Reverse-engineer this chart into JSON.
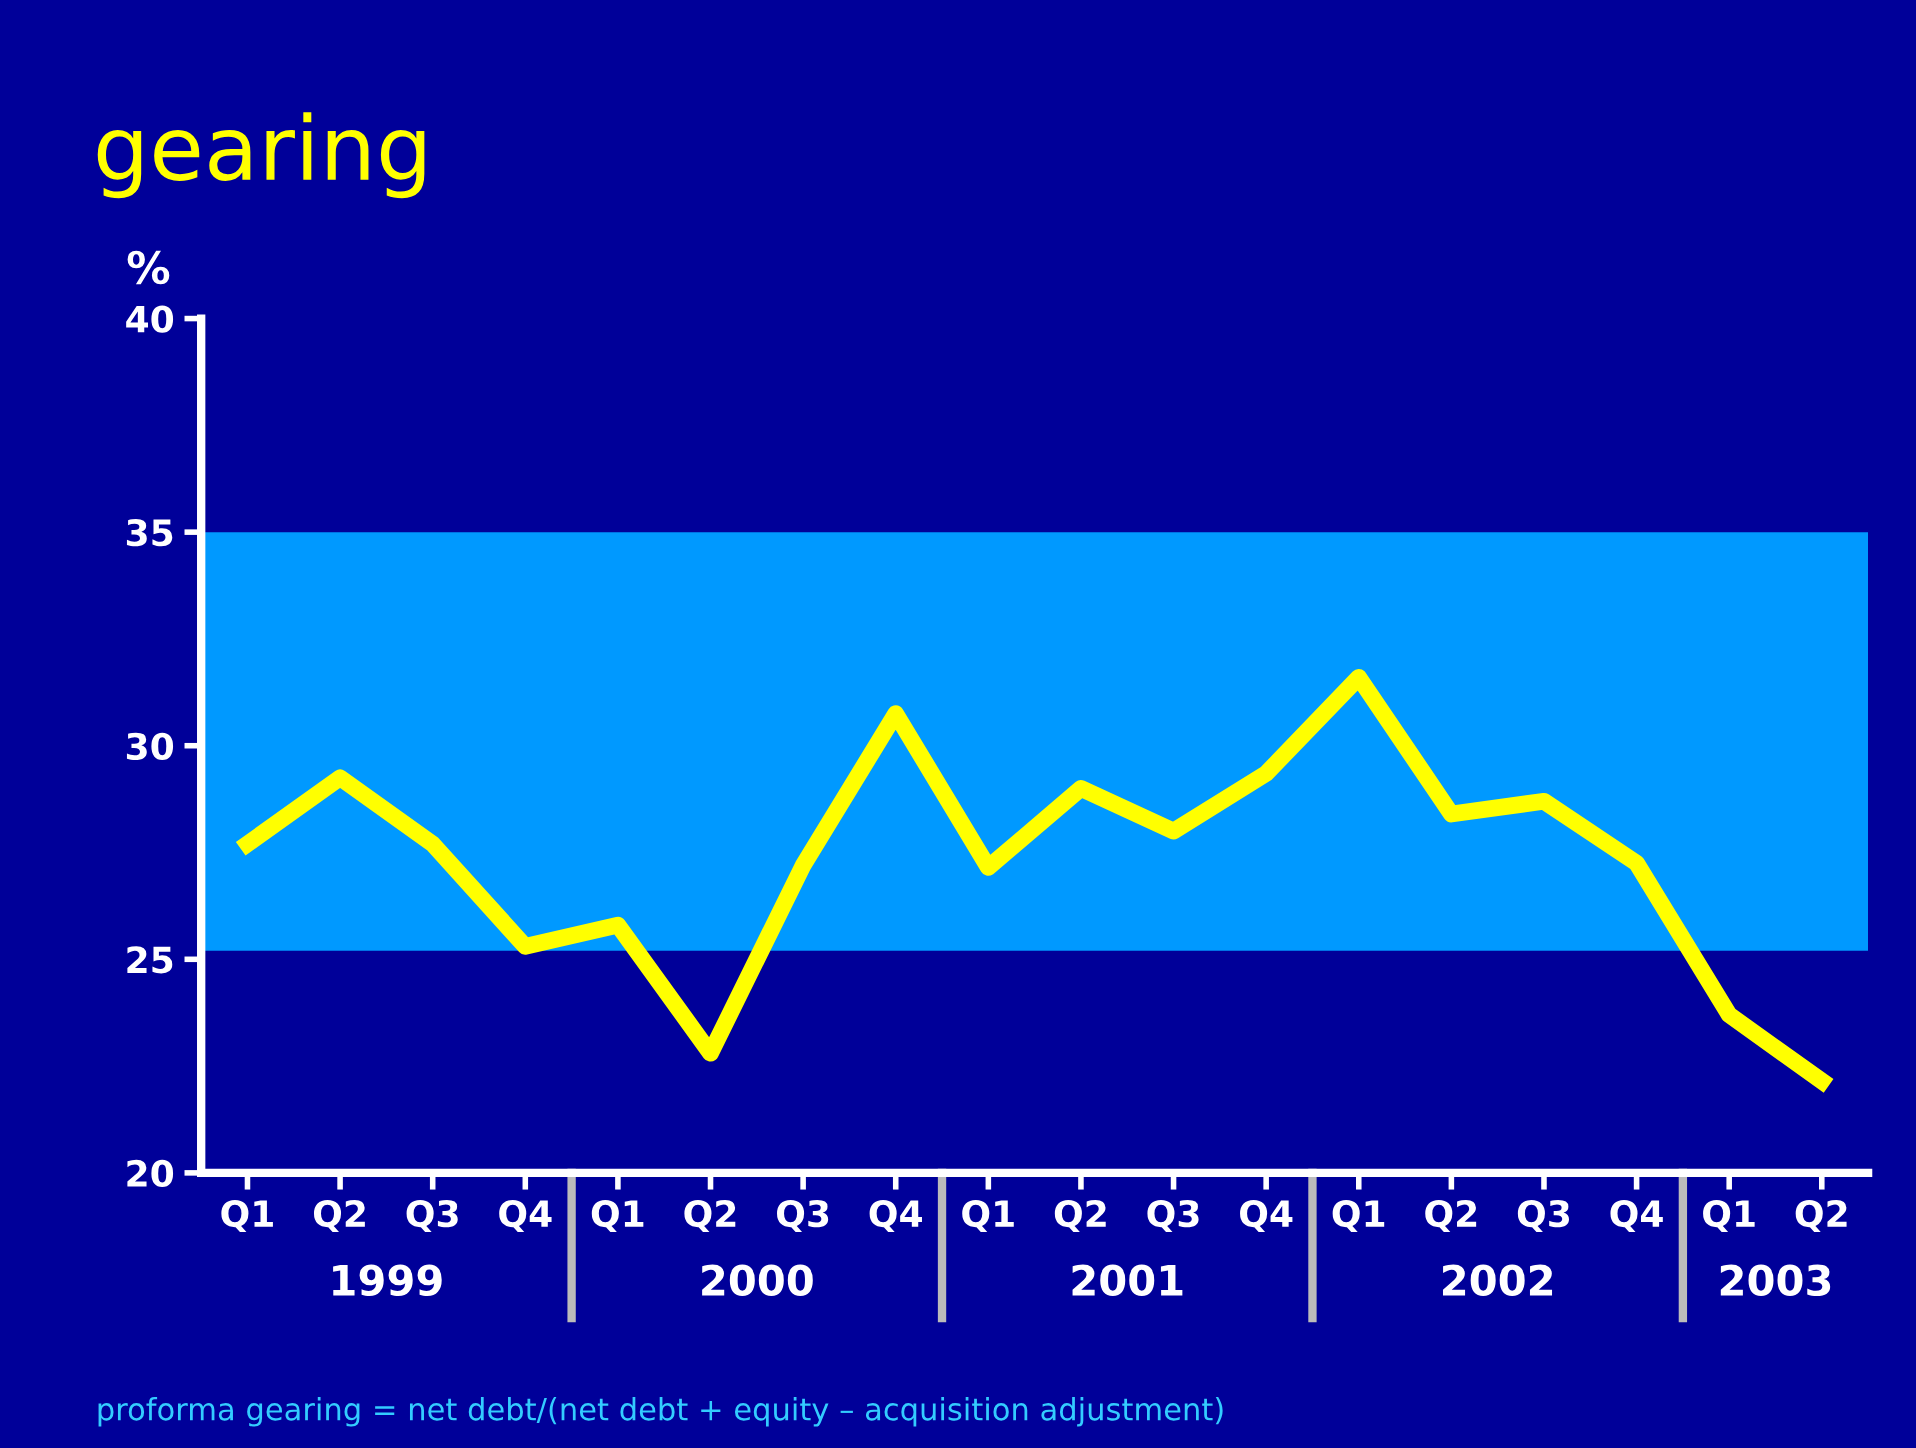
{
  "chart_data": {
    "type": "line",
    "title": "gearing",
    "ylabel": "%",
    "categories": [
      "Q1",
      "Q2",
      "Q3",
      "Q4",
      "Q1",
      "Q2",
      "Q3",
      "Q4",
      "Q1",
      "Q2",
      "Q3",
      "Q4",
      "Q1",
      "Q2",
      "Q3",
      "Q4",
      "Q1",
      "Q2"
    ],
    "series": [
      {
        "color": "#ffff00",
        "values": [
          27.7,
          29.25,
          27.7,
          25.3,
          25.8,
          22.8,
          27.2,
          30.75,
          27.15,
          29.0,
          28.0,
          29.35,
          31.6,
          28.4,
          28.7,
          27.25,
          23.7,
          22.15
        ]
      }
    ],
    "ylim": [
      20,
      40
    ],
    "yticks": [
      20,
      25,
      30,
      35,
      40
    ],
    "bands": [
      {
        "axis": "y",
        "from": 25.2,
        "to": 35,
        "color": "#0099ff"
      }
    ],
    "annotations": [
      "1999",
      "2000",
      "2001",
      "2002",
      "2003",
      "proforma gearing = net debt/(net debt + equity – acquisition adjustment)"
    ],
    "grid": false,
    "legend": false,
    "marker": "none",
    "line_style": "solid"
  }
}
